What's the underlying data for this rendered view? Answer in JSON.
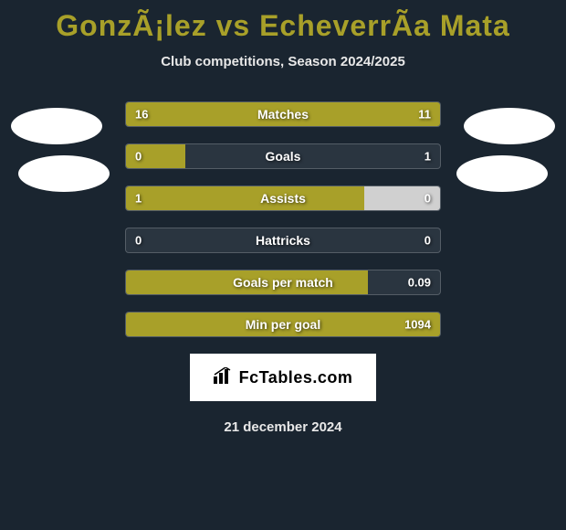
{
  "title_color": "#a8a029",
  "fill_color": "#a8a029",
  "background_color": "#1a2530",
  "bar_background": "#2a3540",
  "avatar_color": "#ffffff",
  "header": {
    "title": "GonzÃ¡lez vs EcheverrÃ­a Mata",
    "subtitle": "Club competitions, Season 2024/2025"
  },
  "stats": [
    {
      "label": "Matches",
      "left_value": "16",
      "right_value": "11",
      "fill_side": "full",
      "left_width_pct": 100,
      "right_width_pct": 0
    },
    {
      "label": "Goals",
      "left_value": "0",
      "right_value": "1",
      "fill_side": "left",
      "left_width_pct": 19,
      "right_width_pct": 0
    },
    {
      "label": "Assists",
      "left_value": "1",
      "right_value": "0",
      "fill_side": "left-right",
      "left_width_pct": 76,
      "right_width_pct": 24,
      "right_color": "#d0d0d0"
    },
    {
      "label": "Hattricks",
      "left_value": "0",
      "right_value": "0",
      "fill_side": "none",
      "left_width_pct": 0,
      "right_width_pct": 0
    },
    {
      "label": "Goals per match",
      "left_value": "",
      "right_value": "0.09",
      "fill_side": "left",
      "left_width_pct": 77,
      "right_width_pct": 0
    },
    {
      "label": "Min per goal",
      "left_value": "",
      "right_value": "1094",
      "fill_side": "full",
      "left_width_pct": 100,
      "right_width_pct": 0
    }
  ],
  "brand": {
    "text": "FcTables.com"
  },
  "date": "21 december 2024"
}
